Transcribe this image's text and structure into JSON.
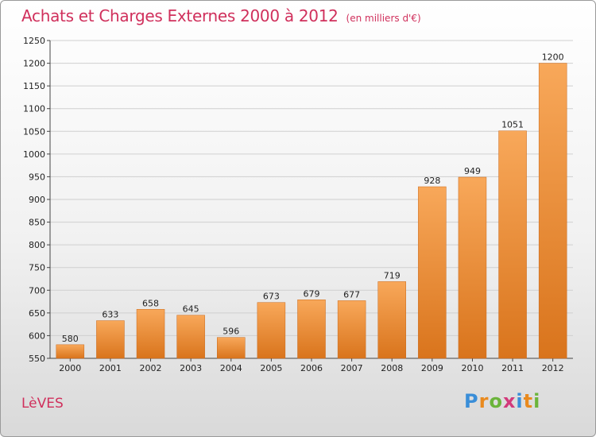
{
  "header": {
    "title": "Achats et Charges Externes 2000 à 2012",
    "unit": "(en milliers d'€)"
  },
  "footer": {
    "city": "LèVES",
    "logo": [
      "P",
      "r",
      "o",
      "x",
      "i",
      "t",
      "i"
    ]
  },
  "colors": {
    "bar_light": "#f8a85a",
    "bar_dark": "#d9741c",
    "title": "#d0305c",
    "grid": "#cfcfcf"
  },
  "chart_data": {
    "type": "bar",
    "title": "Achats et Charges Externes 2000 à 2012",
    "categories": [
      "2000",
      "2001",
      "2002",
      "2003",
      "2004",
      "2005",
      "2006",
      "2007",
      "2008",
      "2009",
      "2010",
      "2011",
      "2012"
    ],
    "values": [
      580,
      633,
      658,
      645,
      596,
      673,
      679,
      677,
      719,
      928,
      949,
      1051,
      1200
    ],
    "ylim": [
      550,
      1250
    ],
    "yticks": [
      550,
      600,
      650,
      700,
      750,
      800,
      850,
      900,
      950,
      1000,
      1050,
      1100,
      1150,
      1200,
      1250
    ],
    "grid": true
  }
}
